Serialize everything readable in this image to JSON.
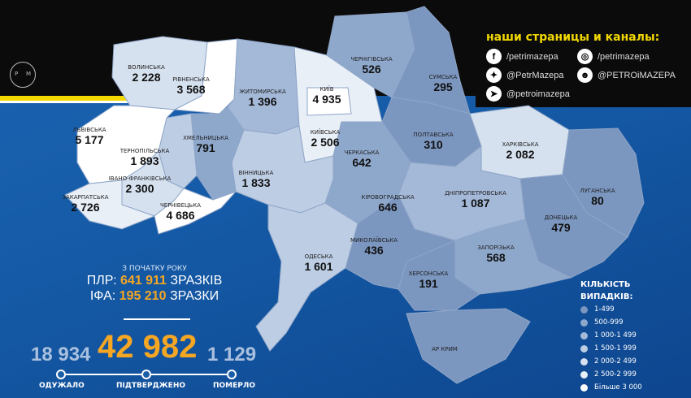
{
  "social": {
    "title": "наши страницы и каналы:",
    "links": [
      {
        "icon": "facebook-icon",
        "glyph": "f",
        "label": "/petrimazepa"
      },
      {
        "icon": "instagram-icon",
        "glyph": "◎",
        "label": "/petrimazepa"
      },
      {
        "icon": "twitter-icon",
        "glyph": "✦",
        "label": "@PetrMazepa"
      },
      {
        "icon": "reddit-icon",
        "glyph": "☻",
        "label": "@PETROiMAZEPA"
      },
      {
        "icon": "telegram-icon",
        "glyph": "➤",
        "label": "@petroimazepa"
      }
    ]
  },
  "logo": {
    "left": "P",
    "right": "M"
  },
  "tests": {
    "since": "З ПОЧАТКУ РОКУ",
    "pcr_prefix": "ПЛР:",
    "pcr_value": "641 911",
    "pcr_suffix": "ЗРАЗКІВ",
    "ifa_prefix": "ІФА:",
    "ifa_value": "195 210",
    "ifa_suffix": "ЗРАЗКИ"
  },
  "totals": {
    "recovered": "18 934",
    "recovered_label": "ОДУЖАЛО",
    "confirmed": "42 982",
    "confirmed_label": "ПІДТВЕРДЖЕНО",
    "died": "1 129",
    "died_label": "ПОМЕРЛО"
  },
  "colors": {
    "accent": "#f5a623",
    "yellow": "#f3d900",
    "background": "#1a5ea8"
  },
  "legend": {
    "title1": "КІЛЬКІСТЬ",
    "title2": "ВИПАДКІВ:",
    "buckets": [
      {
        "label": "1-499",
        "color": "#7b96bf"
      },
      {
        "label": "500-999",
        "color": "#8ea8cc"
      },
      {
        "label": "1 000-1 499",
        "color": "#a4b9d8"
      },
      {
        "label": "1 500-1 999",
        "color": "#bdcde4"
      },
      {
        "label": "2 000-2 499",
        "color": "#d6e1ef"
      },
      {
        "label": "2 500-2 999",
        "color": "#e9eff7"
      },
      {
        "label": "Більше 3 000",
        "color": "#ffffff"
      }
    ]
  },
  "regions": [
    {
      "id": "volyn",
      "name": "ВОЛИНСЬКА",
      "cases": "2 228",
      "bucket": 4
    },
    {
      "id": "rivne",
      "name": "РІВНЕНСЬКА",
      "cases": "3 568",
      "bucket": 6
    },
    {
      "id": "zhytomyr",
      "name": "ЖИТОМИРСЬКА",
      "cases": "1 396",
      "bucket": 2
    },
    {
      "id": "kyivobl",
      "name": "КИЇВСЬКА",
      "cases": "2 506",
      "bucket": 5
    },
    {
      "id": "kyiv",
      "name": "КИЇВ",
      "cases": "4 935",
      "bucket": 6
    },
    {
      "id": "chernihiv",
      "name": "ЧЕРНІГІВСЬКА",
      "cases": "526",
      "bucket": 1
    },
    {
      "id": "sumy",
      "name": "СУМСЬКА",
      "cases": "295",
      "bucket": 0
    },
    {
      "id": "poltava",
      "name": "ПОЛТАВСЬКА",
      "cases": "310",
      "bucket": 0
    },
    {
      "id": "kharkiv",
      "name": "ХАРКІВСЬКА",
      "cases": "2 082",
      "bucket": 4
    },
    {
      "id": "luhansk",
      "name": "ЛУГАНСЬКА",
      "cases": "80",
      "bucket": 0
    },
    {
      "id": "donetsk",
      "name": "ДОНЕЦЬКА",
      "cases": "479",
      "bucket": 0
    },
    {
      "id": "dnipro",
      "name": "ДНІПРОПЕТРОВСЬКА",
      "cases": "1 087",
      "bucket": 2
    },
    {
      "id": "zaporizhzhia",
      "name": "ЗАПОРІЗЬКА",
      "cases": "568",
      "bucket": 1
    },
    {
      "id": "kherson",
      "name": "ХЕРСОНСЬКА",
      "cases": "191",
      "bucket": 0
    },
    {
      "id": "crimea",
      "name": "АР КРИМ",
      "cases": "",
      "bucket": 0
    },
    {
      "id": "mykolaiv",
      "name": "МИКОЛАЇВСЬКА",
      "cases": "436",
      "bucket": 0
    },
    {
      "id": "kirovohrad",
      "name": "КІРОВОГРАДСЬКА",
      "cases": "646",
      "bucket": 1
    },
    {
      "id": "cherkasy",
      "name": "ЧЕРКАСЬКА",
      "cases": "642",
      "bucket": 1
    },
    {
      "id": "vinnytsia",
      "name": "ВІННИЦЬКА",
      "cases": "1 833",
      "bucket": 3
    },
    {
      "id": "khmelnytskyi",
      "name": "ХМЕЛЬНИЦЬКА",
      "cases": "791",
      "bucket": 1
    },
    {
      "id": "ternopil",
      "name": "ТЕРНОПІЛЬСЬКА",
      "cases": "1 893",
      "bucket": 3
    },
    {
      "id": "lviv",
      "name": "ЛЬВІВСЬКА",
      "cases": "5 177",
      "bucket": 6
    },
    {
      "id": "ivanofrankivsk",
      "name": "ІВАНО-ФРАНКІВСЬКА",
      "cases": "2 300",
      "bucket": 4
    },
    {
      "id": "zakarpattia",
      "name": "ЗАКАРПАТСЬКА",
      "cases": "2 726",
      "bucket": 5
    },
    {
      "id": "chernivtsi",
      "name": "ЧЕРНІВЕЦЬКА",
      "cases": "4 686",
      "bucket": 6
    },
    {
      "id": "odesa",
      "name": "ОДЕСЬКА",
      "cases": "1 601",
      "bucket": 3
    }
  ]
}
